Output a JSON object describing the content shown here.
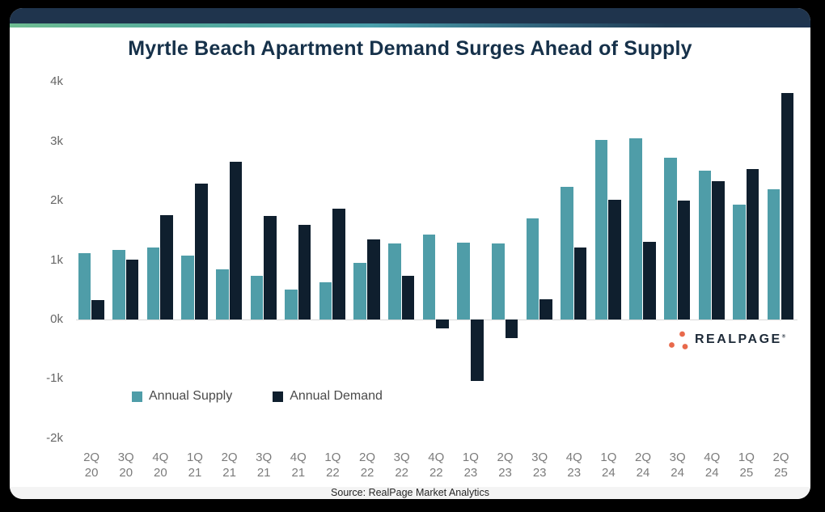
{
  "chart_data": {
    "type": "bar",
    "title": "Myrtle Beach Apartment Demand Surges Ahead of Supply",
    "categories": [
      "2Q 20",
      "3Q 20",
      "4Q 20",
      "1Q 21",
      "2Q 21",
      "3Q 21",
      "4Q 21",
      "1Q 22",
      "2Q 22",
      "3Q 22",
      "4Q 22",
      "1Q 23",
      "2Q 23",
      "3Q 23",
      "4Q 23",
      "1Q 24",
      "2Q 24",
      "3Q 24",
      "4Q 24",
      "1Q 25",
      "2Q 25"
    ],
    "series": [
      {
        "name": "Annual Supply",
        "color": "#4f9da8",
        "values": [
          1120,
          1170,
          1210,
          1070,
          840,
          740,
          510,
          620,
          960,
          1280,
          1430,
          1290,
          1280,
          1700,
          2240,
          3030,
          3050,
          2730,
          2510,
          1940,
          2190
        ]
      },
      {
        "name": "Annual Demand",
        "color": "#0f1f2e",
        "values": [
          330,
          1010,
          1760,
          2290,
          2650,
          1740,
          1600,
          1870,
          1350,
          730,
          -150,
          -1030,
          -310,
          340,
          1210,
          2010,
          1310,
          2000,
          2330,
          2540,
          3820
        ]
      }
    ],
    "ylim": [
      -2000,
      4000
    ],
    "yticks": [
      {
        "value": 4000,
        "label": "4k"
      },
      {
        "value": 3000,
        "label": "3k"
      },
      {
        "value": 2000,
        "label": "2k"
      },
      {
        "value": 1000,
        "label": "1k"
      },
      {
        "value": 0,
        "label": "0k"
      },
      {
        "value": -1000,
        "label": "-1k"
      },
      {
        "value": -2000,
        "label": "-2k"
      }
    ],
    "grid": false,
    "legend_position": "bottom-left",
    "source": "Source: RealPage Market Analytics"
  },
  "logo": {
    "text": "REALPAGE",
    "mark": "®"
  },
  "colors": {
    "page_bg": "#000000",
    "card_bg": "#ffffff",
    "header_bar": "#1f344d",
    "accent_gradient": [
      "#6fbd92",
      "#4aa0ac",
      "#1e3450"
    ],
    "title_text": "#16314a",
    "supply_bar": "#4f9da8",
    "demand_bar": "#0f1f2e",
    "axis_text": "#666666",
    "x_label_text": "#7b7b7b",
    "axis_line": "#d9d9d9",
    "legend_text": "#4a4a4a",
    "logo_orange": "#e8694b",
    "logo_text": "#1d2a38",
    "source_bg": "#f4f4f4",
    "source_text": "#262626"
  }
}
